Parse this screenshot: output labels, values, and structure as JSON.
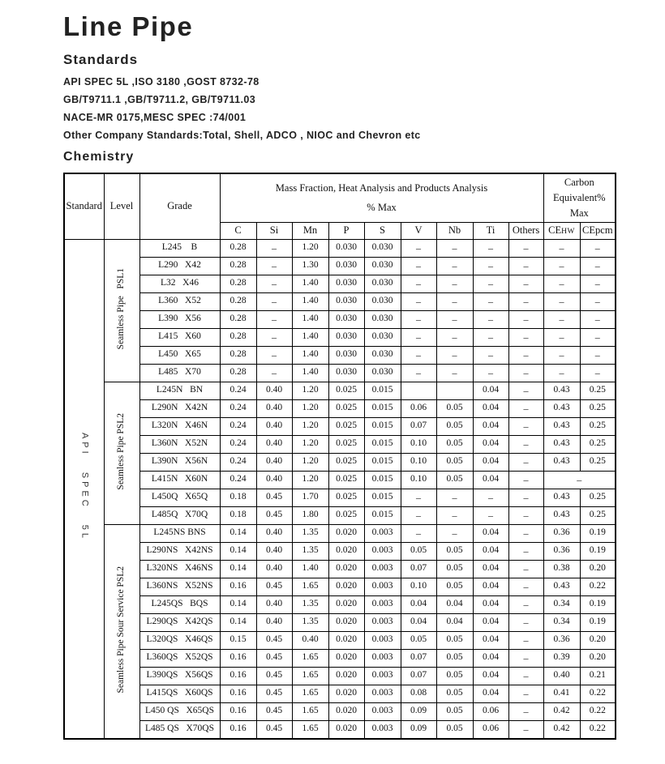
{
  "page": {
    "title": "Line Pipe",
    "standards_heading": "Standards",
    "standards_lines": [
      "API SPEC 5L ,ISO 3180 ,GOST 8732-78",
      "GB/T9711.1 ,GB/T9711.2, GB/T9711.03",
      "NACE-MR 0175,MESC SPEC :74/001",
      "Other Company Standards:Total, Shell, ADCO , NIOC and Chevron etc"
    ],
    "chemistry_heading": "Chemistry"
  },
  "table": {
    "header": {
      "standard": "Standard",
      "level": "Level",
      "grade": "Grade",
      "mass_fraction_line1": "Mass Fraction, Heat Analysis and Products Analysis",
      "mass_fraction_line2": "% Max",
      "carbon_equiv_lines": [
        "Carbon",
        "Equivalent%",
        "Max"
      ],
      "element_cols": [
        "C",
        "Si",
        "Mn",
        "P",
        "S",
        "V",
        "Nb",
        "Ti",
        "Others"
      ],
      "ce_col1_prefix": "CE",
      "ce_col1_sub": "HW",
      "ce_col2": "CEpcm"
    },
    "standard_label": "API SPEC 5L",
    "groups": [
      {
        "level_label": "Seamless Pipe   PSL1",
        "rows": [
          {
            "grade": "L245    B",
            "values": [
              "0.28",
              "–",
              "1.20",
              "0.030",
              "0.030",
              "–",
              "–",
              "–",
              "–",
              "–",
              "–"
            ]
          },
          {
            "grade": "L290   X42",
            "values": [
              "0.28",
              "–",
              "1.30",
              "0.030",
              "0.030",
              "–",
              "–",
              "–",
              "–",
              "–",
              "–"
            ]
          },
          {
            "grade": "L32   X46",
            "values": [
              "0.28",
              "–",
              "1.40",
              "0.030",
              "0.030",
              "–",
              "–",
              "–",
              "–",
              "–",
              "–"
            ]
          },
          {
            "grade": "L360   X52",
            "values": [
              "0.28",
              "–",
              "1.40",
              "0.030",
              "0.030",
              "–",
              "–",
              "–",
              "–",
              "–",
              "–"
            ]
          },
          {
            "grade": "L390   X56",
            "values": [
              "0.28",
              "–",
              "1.40",
              "0.030",
              "0.030",
              "–",
              "–",
              "–",
              "–",
              "–",
              "–"
            ]
          },
          {
            "grade": "L415   X60",
            "values": [
              "0.28",
              "–",
              "1.40",
              "0.030",
              "0.030",
              "–",
              "–",
              "–",
              "–",
              "–",
              "–"
            ]
          },
          {
            "grade": "L450   X65",
            "values": [
              "0.28",
              "–",
              "1.40",
              "0.030",
              "0.030",
              "–",
              "–",
              "–",
              "–",
              "–",
              "–"
            ]
          },
          {
            "grade": "L485   X70",
            "values": [
              "0.28",
              "–",
              "1.40",
              "0.030",
              "0.030",
              "–",
              "–",
              "–",
              "–",
              "–",
              "–"
            ]
          }
        ]
      },
      {
        "level_label": "Seamless Pipe PSL2",
        "rows": [
          {
            "grade": "L245N   BN",
            "values": [
              "0.24",
              "0.40",
              "1.20",
              "0.025",
              "0.015",
              "",
              "",
              "0.04",
              "–",
              "0.43",
              "0.25"
            ]
          },
          {
            "grade": "L290N   X42N",
            "values": [
              "0.24",
              "0.40",
              "1.20",
              "0.025",
              "0.015",
              "0.06",
              "0.05",
              "0.04",
              "–",
              "0.43",
              "0.25"
            ]
          },
          {
            "grade": "L320N   X46N",
            "values": [
              "0.24",
              "0.40",
              "1.20",
              "0.025",
              "0.015",
              "0.07",
              "0.05",
              "0.04",
              "–",
              "0.43",
              "0.25"
            ]
          },
          {
            "grade": "L360N   X52N",
            "values": [
              "0.24",
              "0.40",
              "1.20",
              "0.025",
              "0.015",
              "0.10",
              "0.05",
              "0.04",
              "–",
              "0.43",
              "0.25"
            ]
          },
          {
            "grade": "L390N   X56N",
            "values": [
              "0.24",
              "0.40",
              "1.20",
              "0.025",
              "0.015",
              "0.10",
              "0.05",
              "0.04",
              "–",
              "0.43",
              "0.25"
            ]
          },
          {
            "grade": "L415N   X60N",
            "ce_merged": true,
            "values": [
              "0.24",
              "0.40",
              "1.20",
              "0.025",
              "0.015",
              "0.10",
              "0.05",
              "0.04",
              "–",
              "–"
            ]
          },
          {
            "grade": "L450Q   X65Q",
            "values": [
              "0.18",
              "0.45",
              "1.70",
              "0.025",
              "0.015",
              "–",
              "–",
              "–",
              "–",
              "0.43",
              "0.25"
            ]
          },
          {
            "grade": "L485Q   X70Q",
            "values": [
              "0.18",
              "0.45",
              "1.80",
              "0.025",
              "0.015",
              "–",
              "–",
              "–",
              "–",
              "0.43",
              "0.25"
            ]
          }
        ]
      },
      {
        "level_label": "Seamless Pipe Sour Service PSL2",
        "rows": [
          {
            "grade": "L245NS BNS",
            "values": [
              "0.14",
              "0.40",
              "1.35",
              "0.020",
              "0.003",
              "–",
              "–",
              "0.04",
              "–",
              "0.36",
              "0.19"
            ]
          },
          {
            "grade": "L290NS   X42NS",
            "values": [
              "0.14",
              "0.40",
              "1.35",
              "0.020",
              "0.003",
              "0.05",
              "0.05",
              "0.04",
              "–",
              "0.36",
              "0.19"
            ]
          },
          {
            "grade": "L320NS   X46NS",
            "values": [
              "0.14",
              "0.40",
              "1.40",
              "0.020",
              "0.003",
              "0.07",
              "0.05",
              "0.04",
              "–",
              "0.38",
              "0.20"
            ]
          },
          {
            "grade": "L360NS   X52NS",
            "values": [
              "0.16",
              "0.45",
              "1.65",
              "0.020",
              "0.003",
              "0.10",
              "0.05",
              "0.04",
              "–",
              "0.43",
              "0.22"
            ]
          },
          {
            "grade": "L245QS   BQS",
            "values": [
              "0.14",
              "0.40",
              "1.35",
              "0.020",
              "0.003",
              "0.04",
              "0.04",
              "0.04",
              "–",
              "0.34",
              "0.19"
            ]
          },
          {
            "grade": "L290QS   X42QS",
            "values": [
              "0.14",
              "0.40",
              "1.35",
              "0.020",
              "0.003",
              "0.04",
              "0.04",
              "0.04",
              "–",
              "0.34",
              "0.19"
            ]
          },
          {
            "grade": "L320QS   X46QS",
            "values": [
              "0.15",
              "0.45",
              "0.40",
              "0.020",
              "0.003",
              "0.05",
              "0.05",
              "0.04",
              "–",
              "0.36",
              "0.20"
            ]
          },
          {
            "grade": "L360QS   X52QS",
            "values": [
              "0.16",
              "0.45",
              "1.65",
              "0.020",
              "0.003",
              "0.07",
              "0.05",
              "0.04",
              "–",
              "0.39",
              "0.20"
            ]
          },
          {
            "grade": "L390QS   X56QS",
            "values": [
              "0.16",
              "0.45",
              "1.65",
              "0.020",
              "0.003",
              "0.07",
              "0.05",
              "0.04",
              "–",
              "0.40",
              "0.21"
            ]
          },
          {
            "grade": "L415QS   X60QS",
            "values": [
              "0.16",
              "0.45",
              "1.65",
              "0.020",
              "0.003",
              "0.08",
              "0.05",
              "0.04",
              "–",
              "0.41",
              "0.22"
            ]
          },
          {
            "grade": "L450 QS   X65QS",
            "values": [
              "0.16",
              "0.45",
              "1.65",
              "0.020",
              "0.003",
              "0.09",
              "0.05",
              "0.06",
              "–",
              "0.42",
              "0.22"
            ]
          },
          {
            "grade": "L485 QS   X70QS",
            "values": [
              "0.16",
              "0.45",
              "1.65",
              "0.020",
              "0.003",
              "0.09",
              "0.05",
              "0.06",
              "–",
              "0.42",
              "0.22"
            ]
          }
        ]
      }
    ]
  }
}
